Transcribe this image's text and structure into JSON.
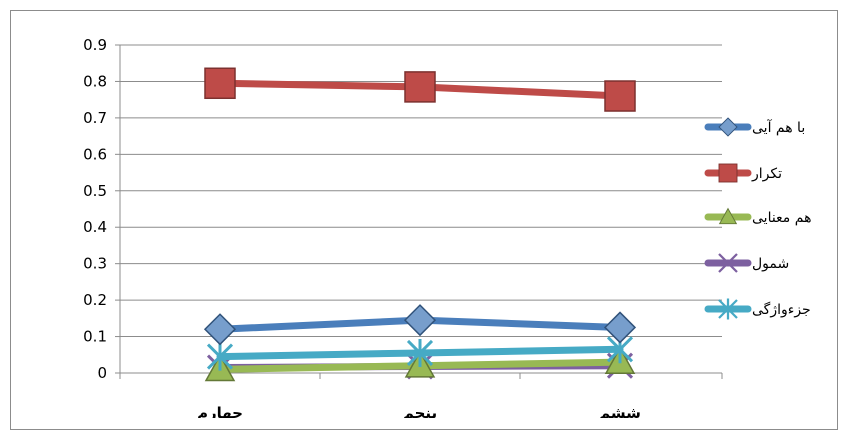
{
  "chart_data": {
    "type": "line",
    "title": "",
    "xlabel": "",
    "ylabel": "",
    "categories": [
      "چهارم",
      "پنجم",
      "ششم"
    ],
    "ylim": [
      0,
      0.9
    ],
    "yticks": [
      "0",
      "0.1",
      "0.2",
      "0.3",
      "0.4",
      "0.5",
      "0.6",
      "0.7",
      "0.8",
      "0.9"
    ],
    "grid": true,
    "legend_position": "right",
    "series": [
      {
        "name": "با هم آیی",
        "values": [
          0.12,
          0.145,
          0.125
        ],
        "color": "#4a7ebb",
        "marker": "diamond"
      },
      {
        "name": "تکرار",
        "values": [
          0.795,
          0.785,
          0.76
        ],
        "color": "#be4b48",
        "marker": "square"
      },
      {
        "name": "هم معنایی",
        "values": [
          0.01,
          0.02,
          0.03
        ],
        "color": "#98b954",
        "marker": "triangle"
      },
      {
        "name": "شمول",
        "values": [
          0.015,
          0.018,
          0.02
        ],
        "color": "#7d60a0",
        "marker": "x"
      },
      {
        "name": "جزءواژگی",
        "values": [
          0.045,
          0.055,
          0.065
        ],
        "color": "#46aac5",
        "marker": "star"
      }
    ]
  }
}
